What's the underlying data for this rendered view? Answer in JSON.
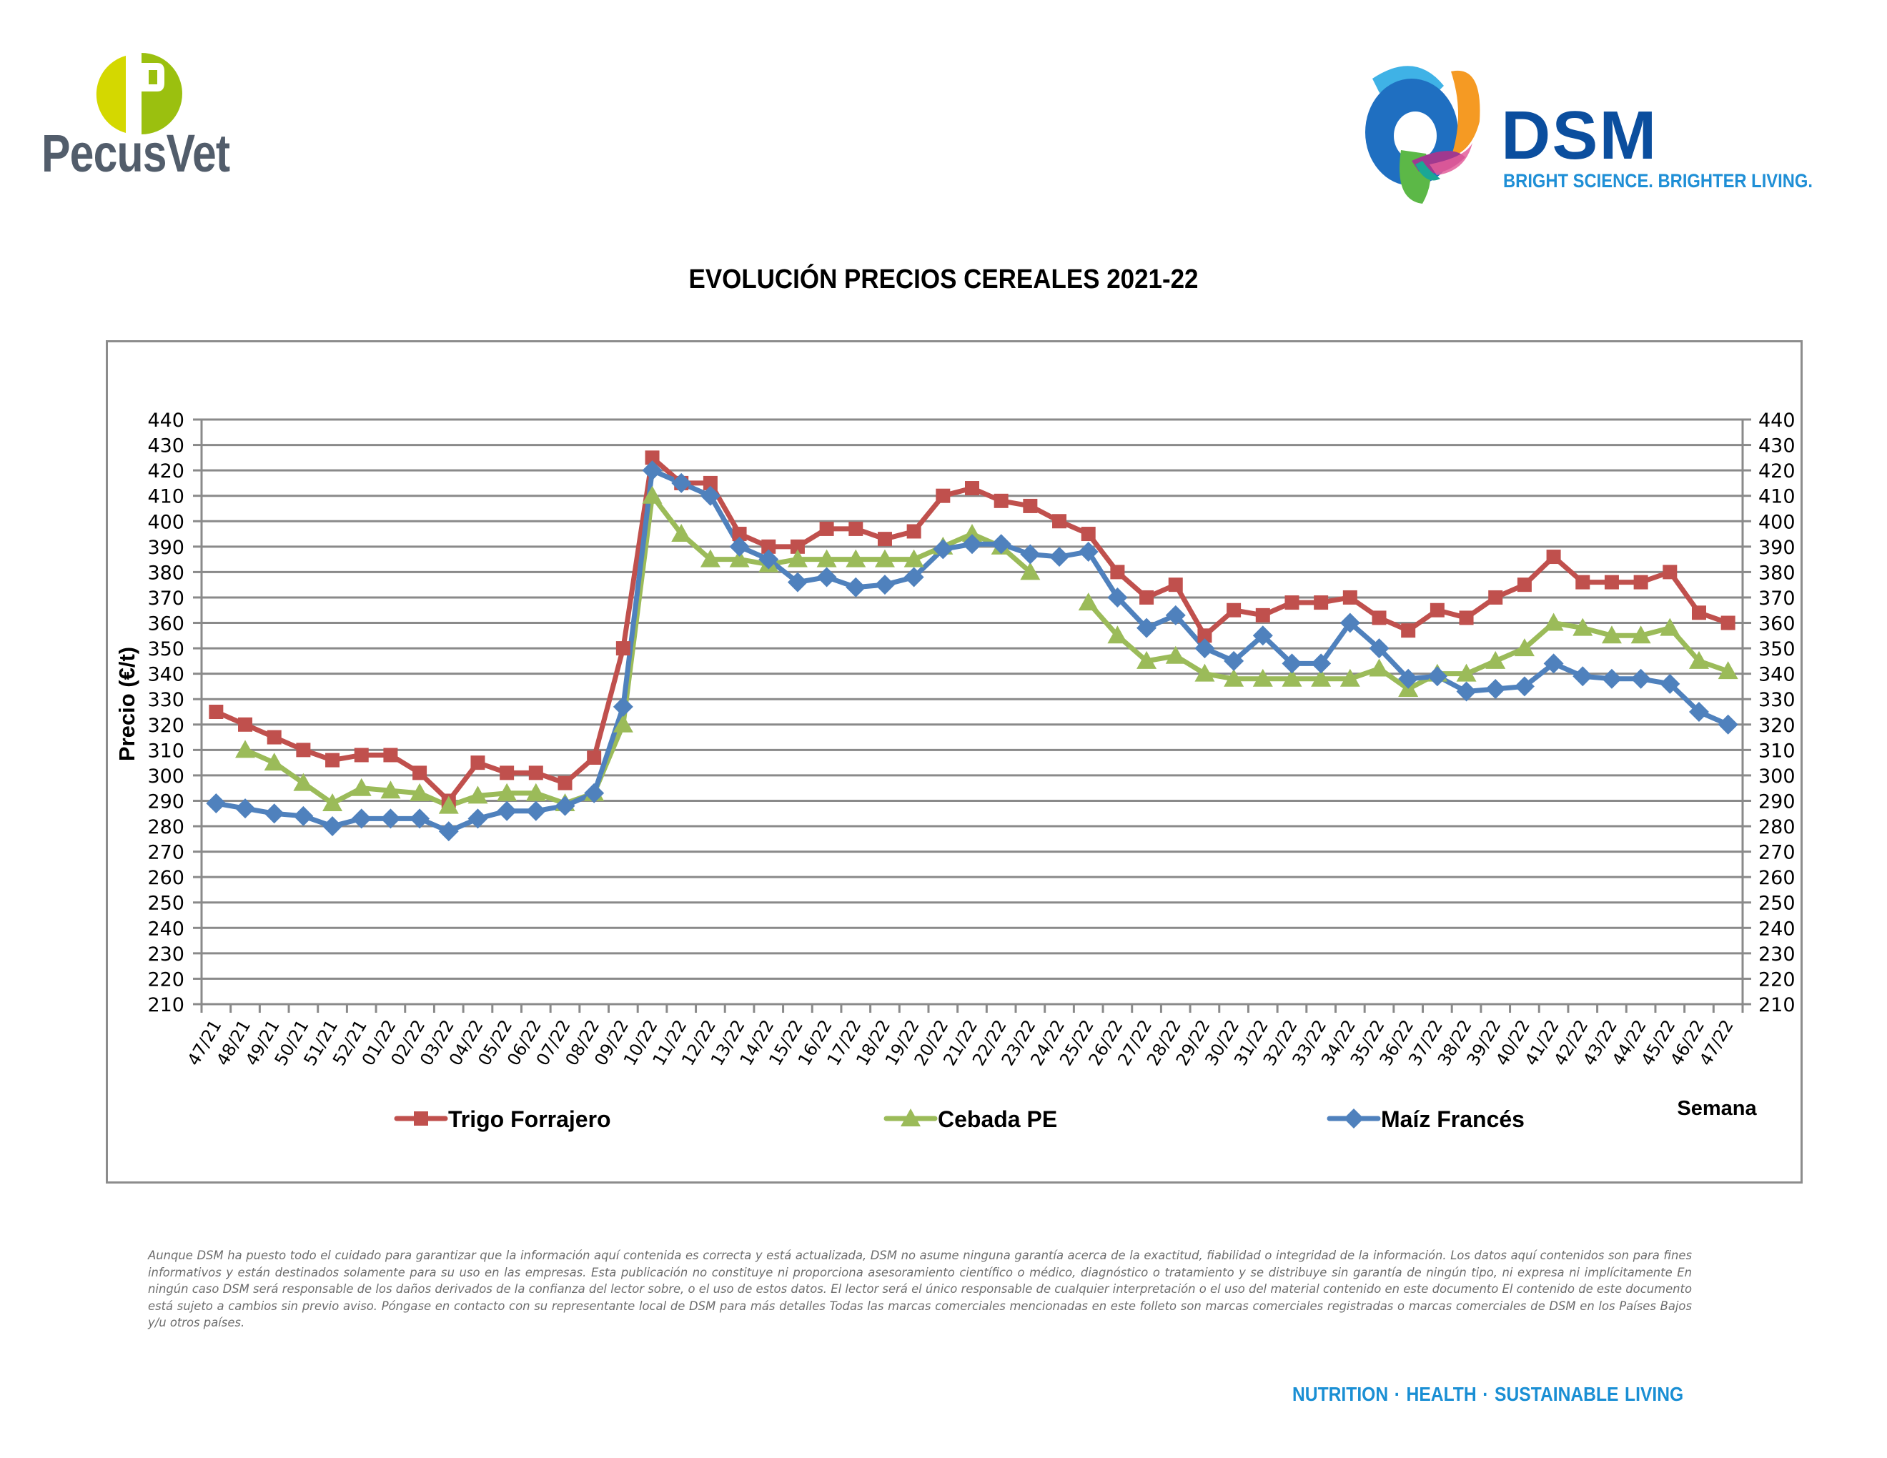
{
  "header": {
    "left_logo": {
      "name": "PecusVet",
      "mark_letter": "P",
      "colors": [
        "#d4d800",
        "#9bc00f"
      ]
    },
    "right_logo": {
      "name": "DSM",
      "tagline": "BRIGHT SCIENCE. BRIGHTER LIVING.",
      "word_color": "#0b4e9e",
      "tagline_color": "#1f8fd6"
    }
  },
  "chart_data": {
    "type": "line",
    "title": "EVOLUCIÓN PRECIOS CEREALES 2021-22",
    "xlabel": "Semana",
    "ylabel": "Precio (€/t)",
    "ylim": [
      210,
      440
    ],
    "ytick_step": 10,
    "yticks": [
      210,
      220,
      230,
      240,
      250,
      260,
      270,
      280,
      290,
      300,
      310,
      320,
      330,
      340,
      350,
      360,
      370,
      380,
      390,
      400,
      410,
      420,
      430,
      440
    ],
    "secondary_y_axis": true,
    "grid": true,
    "legend_position": "bottom",
    "categories": [
      "47/21",
      "48/21",
      "49/21",
      "50/21",
      "51/21",
      "52/21",
      "01/22",
      "02/22",
      "03/22",
      "04/22",
      "05/22",
      "06/22",
      "07/22",
      "08/22",
      "09/22",
      "10/22",
      "11/22",
      "12/22",
      "13/22",
      "14/22",
      "15/22",
      "16/22",
      "17/22",
      "18/22",
      "19/22",
      "20/22",
      "21/22",
      "22/22",
      "23/22",
      "24/22",
      "25/22",
      "26/22",
      "27/22",
      "28/22",
      "29/22",
      "30/22",
      "31/22",
      "32/22",
      "33/22",
      "34/22",
      "35/22",
      "36/22",
      "37/22",
      "38/22",
      "39/22",
      "40/22",
      "41/22",
      "42/22",
      "43/22",
      "44/22",
      "45/22",
      "46/22",
      "47/22"
    ],
    "series": [
      {
        "name": "Trigo Forrajero",
        "marker": "square",
        "color": "#c0504d",
        "values": [
          325,
          320,
          315,
          310,
          306,
          308,
          308,
          301,
          290,
          305,
          301,
          301,
          297,
          307,
          350,
          425,
          415,
          415,
          395,
          390,
          390,
          397,
          397,
          393,
          396,
          410,
          413,
          408,
          406,
          400,
          395,
          380,
          370,
          375,
          355,
          365,
          363,
          368,
          368,
          370,
          362,
          357,
          365,
          362,
          370,
          375,
          386,
          376,
          376,
          376,
          380,
          364,
          360
        ]
      },
      {
        "name": "Cebada PE",
        "marker": "triangle",
        "color": "#9bbb59",
        "values": [
          null,
          310,
          305,
          297,
          289,
          295,
          294,
          293,
          288,
          292,
          293,
          293,
          289,
          293,
          320,
          410,
          395,
          385,
          385,
          383,
          385,
          385,
          385,
          385,
          385,
          390,
          395,
          390,
          380,
          null,
          368,
          355,
          345,
          347,
          340,
          338,
          338,
          338,
          338,
          338,
          342,
          334,
          340,
          340,
          345,
          350,
          360,
          358,
          355,
          355,
          358,
          345,
          341
        ]
      },
      {
        "name": "Maíz Francés",
        "marker": "diamond",
        "color": "#4f81bd",
        "values": [
          289,
          287,
          285,
          284,
          280,
          283,
          283,
          283,
          278,
          283,
          286,
          286,
          288,
          293,
          327,
          420,
          415,
          410,
          390,
          385,
          376,
          378,
          374,
          375,
          378,
          389,
          391,
          391,
          387,
          386,
          388,
          370,
          358,
          363,
          350,
          345,
          355,
          344,
          344,
          360,
          350,
          338,
          339,
          333,
          334,
          335,
          344,
          339,
          338,
          338,
          336,
          325,
          320
        ]
      }
    ]
  },
  "footer": {
    "disclaimer": "Aunque DSM ha puesto todo el cuidado para garantizar que la información aquí contenida es correcta y está actualizada, DSM no asume ninguna garantía acerca de la exactitud, fiabilidad o integridad de la información. Los datos aquí contenidos son para fines informativos y están destinados solamente para su uso en las empresas. Esta publicación no constituye ni proporciona asesoramiento científico o médico, diagnóstico o tratamiento y se distribuye sin garantía de ningún tipo, ni expresa ni implícitamente En ningún caso DSM será responsable de los daños derivados de la confianza del lector sobre, o el uso de estos datos. El lector será el único responsable de cualquier interpretación o el uso del material contenido en este documento El contenido de este documento está sujeto a cambios sin previo aviso. Póngase en contacto con su representante local de DSM para más detalles Todas las marcas comerciales mencionadas en este folleto son marcas comerciales registradas o marcas comerciales de DSM en los Países Bajos y/u otros países.",
    "tagline": "NUTRITION · HEALTH · SUSTAINABLE LIVING"
  }
}
